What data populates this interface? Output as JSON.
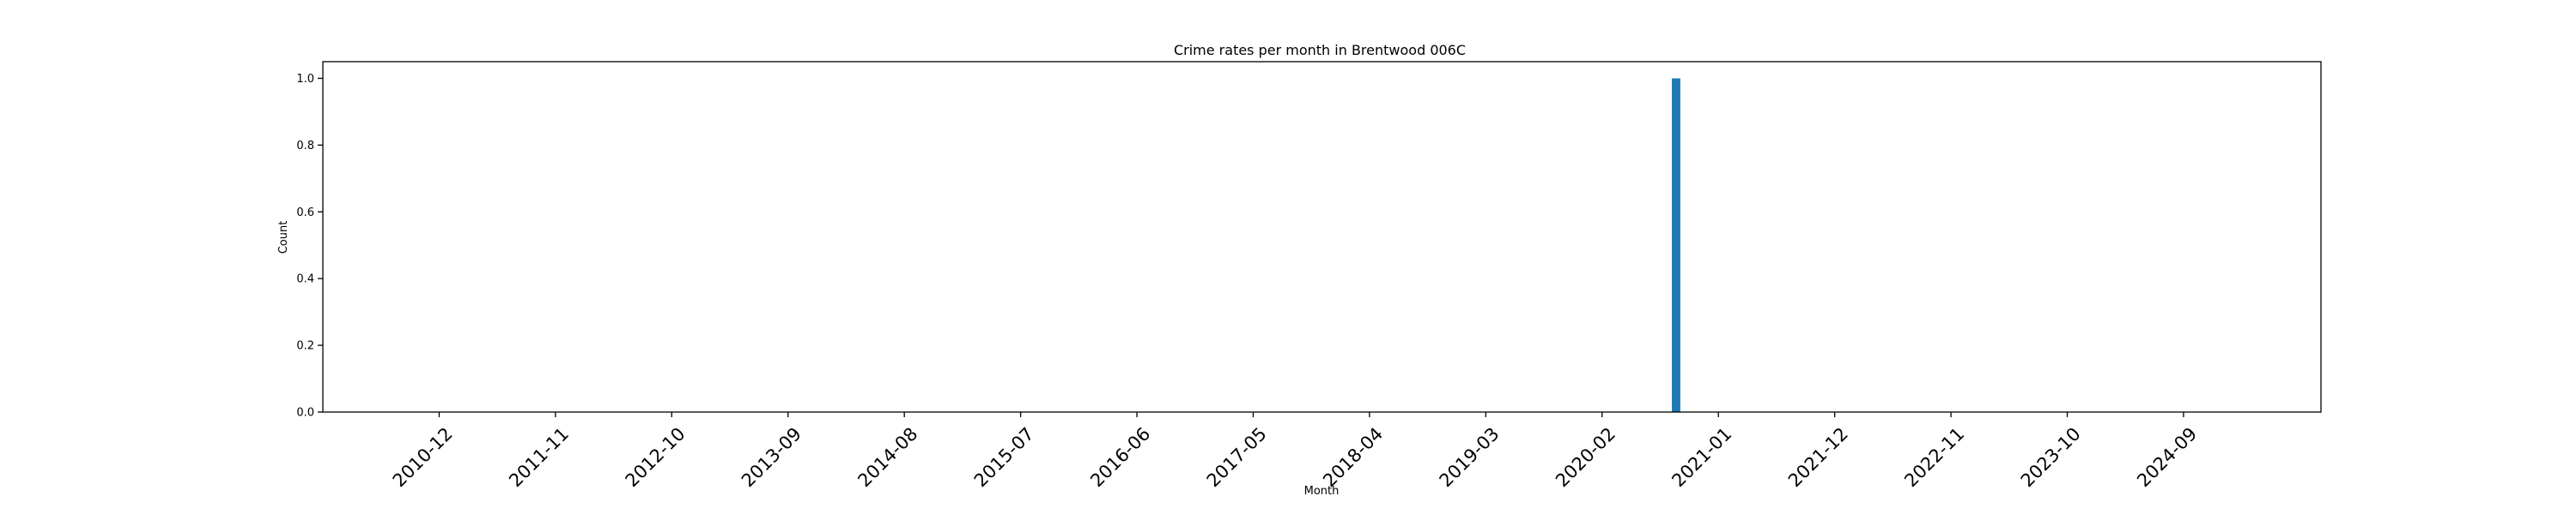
{
  "chart_data": {
    "type": "bar",
    "title": "Crime rates per month in Brentwood 006C",
    "xlabel": "Month",
    "ylabel": "Count",
    "ylim": [
      0,
      1.05
    ],
    "yticks": [
      "0.0",
      "0.2",
      "0.4",
      "0.6",
      "0.8",
      "1.0"
    ],
    "xticks": [
      "2010-12",
      "2011-11",
      "2012-10",
      "2013-09",
      "2014-08",
      "2015-07",
      "2016-06",
      "2017-05",
      "2018-04",
      "2019-03",
      "2020-02",
      "2021-01",
      "2021-12",
      "2022-11",
      "2023-10",
      "2024-09"
    ],
    "xlim": [
      "2010-01",
      "2025-10"
    ],
    "grid": false,
    "bar_color": "#1f77b4",
    "categories": [
      "2020-09"
    ],
    "values": [
      1
    ]
  }
}
